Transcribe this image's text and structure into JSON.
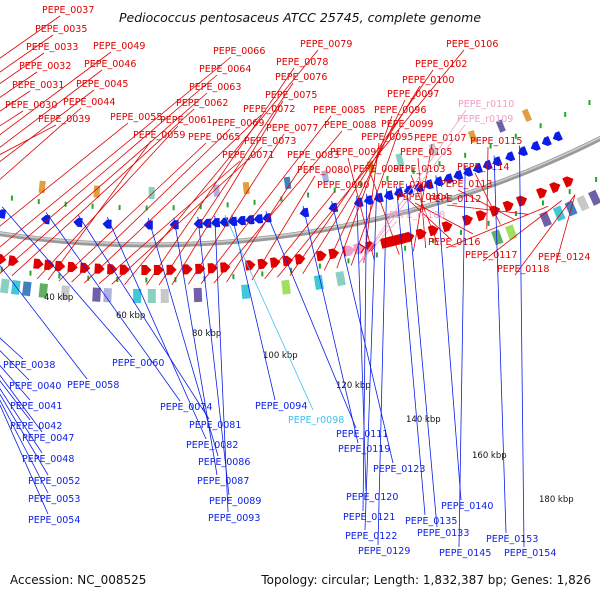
{
  "title": "Pediococcus pentosaceus ATCC 25745, complete genome",
  "footer": {
    "accession": "Accession: NC_008525",
    "summary": "Topology: circular; Length: 1,832,387 bp; Genes: 1,826"
  },
  "colors": {
    "forward": "#e00000",
    "reverse": "#0a1ee8",
    "rna": "#f0a0c8",
    "backbone": "#9a9a9a",
    "tick": "#26a826",
    "trna_reverse": "#40c0f0"
  },
  "axis_labels": [
    "40 kbp",
    "60 kbp",
    "80 kbp",
    "100 kbp",
    "120 kbp",
    "140 kbp",
    "160 kbp",
    "180 kbp"
  ],
  "forward_labels": [
    "PEPE_0037",
    "PEPE_0035",
    "PEPE_0033",
    "PEPE_0032",
    "PEPE_0031",
    "PEPE_0030",
    "PEPE_0039",
    "PEPE_0049",
    "PEPE_0046",
    "PEPE_0045",
    "PEPE_0044",
    "PEPE_0055",
    "PEPE_0066",
    "PEPE_0064",
    "PEPE_0063",
    "PEPE_0062",
    "PEPE_0061",
    "PEPE_0059",
    "PEPE_0065",
    "PEPE_0069",
    "PEPE_0072",
    "PEPE_0071",
    "PEPE_0073",
    "PEPE_0079",
    "PEPE_0078",
    "PEPE_0076",
    "PEPE_0075",
    "PEPE_0077",
    "PEPE_0085",
    "PEPE_0088",
    "PEPE_0083",
    "PEPE_0080",
    "PEPE_0090",
    "PEPE_0106",
    "PEPE_0102",
    "PEPE_0100",
    "PEPE_0097",
    "PEPE_0096",
    "PEPE_0099",
    "PEPE_0095",
    "PEPE_0092",
    "PEPE_0091",
    "PEPE_0107",
    "PEPE_0105",
    "PEPE_0103",
    "PEPE_0101",
    "PEPE_0104",
    "PEPE_0115",
    "PEPE_0114",
    "PEPE_0113",
    "PEPE_0112",
    "PEPE_0116",
    "PEPE_0117",
    "PEPE_0118",
    "PEPE_0124"
  ],
  "rna_labels": [
    "PEPE_r0110",
    "PEPE_r0109",
    "PEPE_r0108"
  ],
  "reverse_labels": [
    "PEPE_0038",
    "PEPE_0040",
    "PEPE_0041",
    "PEPE_0042",
    "PEPE_0047",
    "PEPE_0048",
    "PEPE_0052",
    "PEPE_0053",
    "PEPE_0054",
    "PEPE_0058",
    "PEPE_0060",
    "PEPE_0074",
    "PEPE_0081",
    "PEPE_0082",
    "PEPE_0086",
    "PEPE_0087",
    "PEPE_0089",
    "PEPE_0093",
    "PEPE_0094",
    "PEPE_0111",
    "PEPE_0119",
    "PEPE_0123",
    "PEPE_0120",
    "PEPE_0121",
    "PEPE_0122",
    "PEPE_0129",
    "PEPE_0135",
    "PEPE_0133",
    "PEPE_0140",
    "PEPE_0145",
    "PEPE_0153",
    "PEPE_0154"
  ],
  "trna_reverse_label": "PEPE_r0098"
}
